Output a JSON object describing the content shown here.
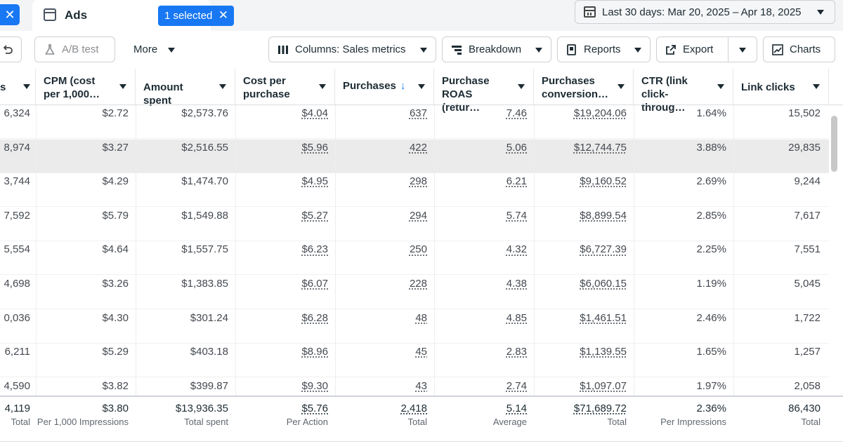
{
  "tabs": {
    "close_symbol": "✕",
    "ads_label": "Ads",
    "selected_badge": "1 selected",
    "badge_close": "✕"
  },
  "date_range": {
    "label": "Last 30 days: Mar 20, 2025 – Apr 18, 2025"
  },
  "toolbar": {
    "ab_test": "A/B test",
    "more": "More",
    "columns": "Columns: Sales metrics",
    "breakdown": "Breakdown",
    "reports": "Reports",
    "export": "Export",
    "charts": "Charts"
  },
  "columns": [
    {
      "label": "s"
    },
    {
      "label": "CPM (cost per 1,000…"
    },
    {
      "label": "Amount spent"
    },
    {
      "label": "Cost per purchase"
    },
    {
      "label": "Purchases",
      "sort_icon": "↓"
    },
    {
      "label": "Purchase ROAS (retur…"
    },
    {
      "label": "Purchases conversion…"
    },
    {
      "label": "CTR (link click-throug…"
    },
    {
      "label": "Link clicks"
    }
  ],
  "rows": [
    [
      "6,324",
      "$2.72",
      "$2,573.76",
      "$4.04",
      "637",
      "7.46",
      "$19,204.06",
      "1.64%",
      "15,502"
    ],
    [
      "8,974",
      "$3.27",
      "$2,516.55",
      "$5.96",
      "422",
      "5.06",
      "$12,744.75",
      "3.88%",
      "29,835"
    ],
    [
      "3,744",
      "$4.29",
      "$1,474.70",
      "$4.95",
      "298",
      "6.21",
      "$9,160.52",
      "2.69%",
      "9,244"
    ],
    [
      "7,592",
      "$5.79",
      "$1,549.88",
      "$5.27",
      "294",
      "5.74",
      "$8,899.54",
      "2.85%",
      "7,617"
    ],
    [
      "5,554",
      "$4.64",
      "$1,557.75",
      "$6.23",
      "250",
      "4.32",
      "$6,727.39",
      "2.25%",
      "7,551"
    ],
    [
      "4,698",
      "$3.26",
      "$1,383.85",
      "$6.07",
      "228",
      "4.38",
      "$6,060.15",
      "1.19%",
      "5,045"
    ],
    [
      "0,036",
      "$4.30",
      "$301.24",
      "$6.28",
      "48",
      "4.85",
      "$1,461.51",
      "2.46%",
      "1,722"
    ],
    [
      "6,211",
      "$5.29",
      "$403.18",
      "$8.96",
      "45",
      "2.83",
      "$1,139.55",
      "1.65%",
      "1,257"
    ],
    [
      "4,590",
      "$3.82",
      "$399.87",
      "$9.30",
      "43",
      "2.74",
      "$1,097.07",
      "1.97%",
      "2,058"
    ]
  ],
  "totals": [
    {
      "value": "4,119",
      "sub": "Total"
    },
    {
      "value": "$3.80",
      "sub": "Per 1,000 Impressions"
    },
    {
      "value": "$13,936.35",
      "sub": "Total spent"
    },
    {
      "value": "$5.76",
      "sub": "Per Action"
    },
    {
      "value": "2,418",
      "sub": "Total"
    },
    {
      "value": "5.14",
      "sub": "Average"
    },
    {
      "value": "$71,689.72",
      "sub": "Total"
    },
    {
      "value": "2.36%",
      "sub": "Per Impressions"
    },
    {
      "value": "86,430",
      "sub": "Total"
    }
  ],
  "highlighted_row": 1,
  "colors": {
    "accent": "#1877f2",
    "row_highlight": "#ebebeb"
  }
}
